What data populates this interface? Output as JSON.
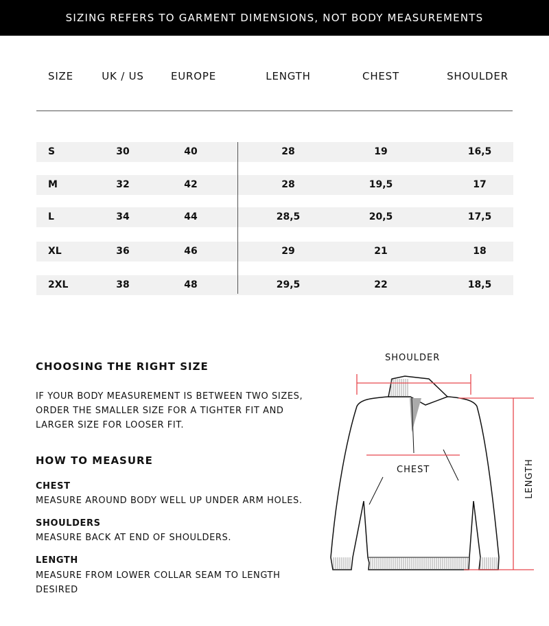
{
  "banner": "SIZING REFERS TO GARMENT DIMENSIONS, NOT BODY MEASUREMENTS",
  "table": {
    "headers": [
      "SIZE",
      "UK / US",
      "EUROPE",
      "LENGTH",
      "CHEST",
      "SHOULDER"
    ],
    "rows": [
      [
        "S",
        "30",
        "40",
        "28",
        "19",
        "16,5"
      ],
      [
        "M",
        "32",
        "42",
        "28",
        "19,5",
        "17"
      ],
      [
        "L",
        "34",
        "44",
        "28,5",
        "20,5",
        "17,5"
      ],
      [
        "XL",
        "36",
        "46",
        "29",
        "21",
        "18"
      ],
      [
        "2XL",
        "38",
        "48",
        "29,5",
        "22",
        "18,5"
      ]
    ]
  },
  "guide": {
    "title": "CHOOSING THE RIGHT SIZE",
    "text_lines": [
      "IF YOUR BODY MEASUREMENT IS BETWEEN TWO SIZES,",
      "ORDER THE SMALLER SIZE FOR A TIGHTER FIT AND",
      "LARGER SIZE FOR LOOSER FIT."
    ],
    "measure_title": "HOW TO MEASURE",
    "items": [
      {
        "label": "CHEST",
        "lines": [
          "MEASURE AROUND BODY WELL UP UNDER ARM HOLES."
        ]
      },
      {
        "label": "SHOULDERS",
        "lines": [
          "MEASURE BACK AT END OF SHOULDERS."
        ]
      },
      {
        "label": "LENGTH",
        "lines": [
          "MEASURE FROM LOWER COLLAR SEAM TO LENGTH",
          "DESIRED"
        ]
      }
    ]
  },
  "diagram": {
    "shoulder": "SHOULDER",
    "chest": "CHEST",
    "length": "LENGTH",
    "line_color": "#e8474d"
  }
}
